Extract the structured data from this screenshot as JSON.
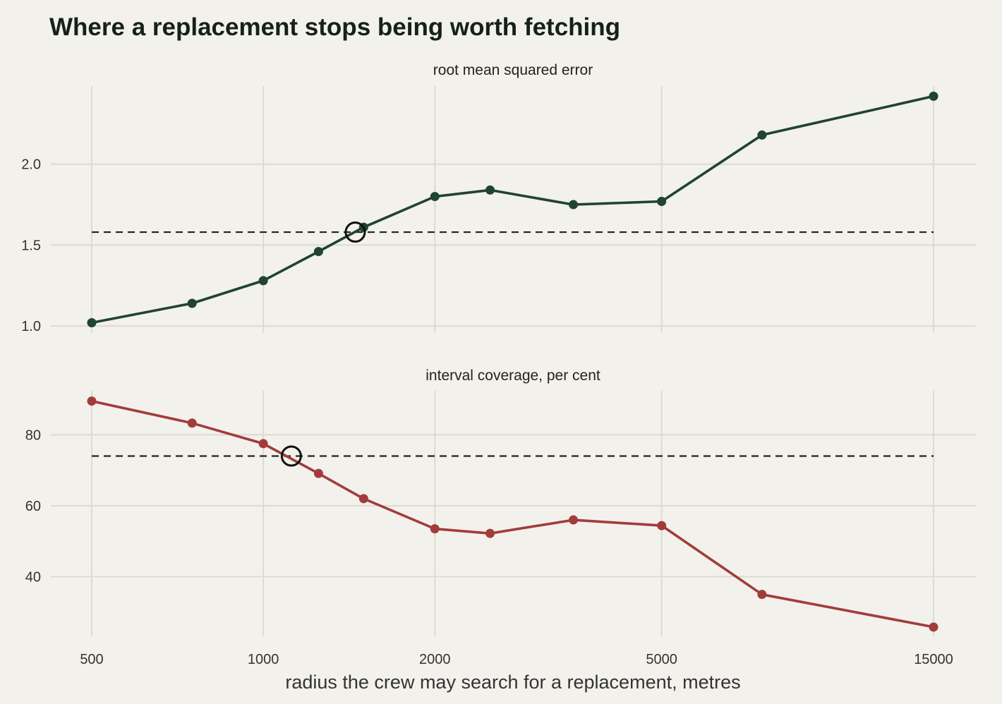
{
  "chart_data": {
    "type": "line",
    "title": "Where a replacement stops being worth fetching",
    "xlabel": "radius the crew may search for a replacement, metres",
    "xscale": "log",
    "xlim": [
      500,
      15000
    ],
    "xticks": [
      500,
      1000,
      2000,
      5000,
      15000
    ],
    "x": [
      500,
      750,
      1000,
      1250,
      1500,
      2000,
      2500,
      3500,
      5000,
      7500,
      15000
    ],
    "panels": [
      {
        "strip_label": "root mean squared error",
        "color": "#1f4430",
        "values": [
          1.02,
          1.14,
          1.28,
          1.46,
          1.61,
          1.8,
          1.84,
          1.75,
          1.77,
          2.18,
          2.42
        ],
        "reference_y": 1.58,
        "crossing_x": 1450,
        "ylim": [
          0.97,
          2.5
        ],
        "yticks": [
          1.0,
          1.5,
          2.0
        ],
        "ytick_labels": [
          "1.0",
          "1.5",
          "2.0"
        ]
      },
      {
        "strip_label": "interval coverage, per cent",
        "color": "#a23c3c",
        "values": [
          89.5,
          83.3,
          77.5,
          69.1,
          62.0,
          53.5,
          52.2,
          56.0,
          54.4,
          35.0,
          25.8
        ],
        "reference_y": 74.0,
        "crossing_x": 1120,
        "ylim": [
          24,
          92
        ],
        "yticks": [
          40,
          60,
          80
        ],
        "ytick_labels": [
          "40",
          "60",
          "80"
        ]
      }
    ],
    "grid": true,
    "legend": "none"
  }
}
